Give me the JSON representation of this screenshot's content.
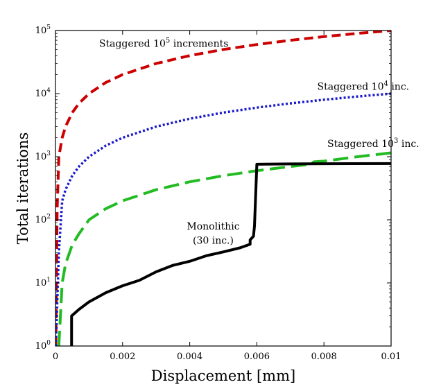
{
  "chart_data": {
    "type": "line",
    "xlabel": "Displacement [mm]",
    "ylabel": "Total iterations",
    "xlim": [
      0,
      0.01
    ],
    "ylim": [
      1,
      100000
    ],
    "yscale": "log",
    "grid": false,
    "x_ticks": [
      "0",
      "0.002",
      "0.004",
      "0.006",
      "0.008",
      "0.01"
    ],
    "x_tick_values": [
      0,
      0.002,
      0.004,
      0.006,
      0.008,
      0.01
    ],
    "y_ticks": [
      {
        "base": "10",
        "exp": "0",
        "value": 1
      },
      {
        "base": "10",
        "exp": "1",
        "value": 10
      },
      {
        "base": "10",
        "exp": "2",
        "value": 100
      },
      {
        "base": "10",
        "exp": "3",
        "value": 1000
      },
      {
        "base": "10",
        "exp": "4",
        "value": 10000
      },
      {
        "base": "10",
        "exp": "5",
        "value": 100000
      }
    ],
    "series": [
      {
        "color": "#cc0000",
        "dash": "long-dash",
        "points": [
          [
            1e-05,
            1
          ],
          [
            5e-05,
            150
          ],
          [
            0.0001,
            1000
          ],
          [
            0.0002,
            2000
          ],
          [
            0.0003,
            3000
          ],
          [
            0.0005,
            5000
          ],
          [
            0.0007,
            7000
          ],
          [
            0.001,
            10000
          ],
          [
            0.0015,
            15000
          ],
          [
            0.002,
            20000
          ],
          [
            0.003,
            30000
          ],
          [
            0.004,
            40000
          ],
          [
            0.005,
            50000
          ],
          [
            0.006,
            60000
          ],
          [
            0.007,
            70000
          ],
          [
            0.008,
            80000
          ],
          [
            0.009,
            90000
          ],
          [
            0.01,
            100000
          ]
        ]
      },
      {
        "color": "#1a1acc",
        "dash": "dotted",
        "points": [
          [
            1e-05,
            1
          ],
          [
            0.0001,
            30
          ],
          [
            0.0002,
            200
          ],
          [
            0.0003,
            300
          ],
          [
            0.0005,
            500
          ],
          [
            0.0007,
            700
          ],
          [
            0.001,
            1000
          ],
          [
            0.0015,
            1500
          ],
          [
            0.002,
            2000
          ],
          [
            0.003,
            3000
          ],
          [
            0.004,
            4000
          ],
          [
            0.005,
            5000
          ],
          [
            0.006,
            6000
          ],
          [
            0.007,
            7000
          ],
          [
            0.008,
            8000
          ],
          [
            0.009,
            9000
          ],
          [
            0.01,
            10000
          ]
        ]
      },
      {
        "color": "#22bb22",
        "dash": "dashed",
        "points": [
          [
            0.0001,
            1
          ],
          [
            0.0002,
            10
          ],
          [
            0.0003,
            20
          ],
          [
            0.0005,
            40
          ],
          [
            0.0007,
            60
          ],
          [
            0.001,
            100
          ],
          [
            0.0015,
            150
          ],
          [
            0.002,
            200
          ],
          [
            0.003,
            300
          ],
          [
            0.004,
            400
          ],
          [
            0.005,
            500
          ],
          [
            0.006,
            600
          ],
          [
            0.007,
            700
          ],
          [
            0.0076,
            760
          ],
          [
            0.0077,
            830
          ],
          [
            0.008,
            850
          ],
          [
            0.009,
            1000
          ],
          [
            0.01,
            1150
          ]
        ]
      },
      {
        "color": "#000000",
        "dash": "solid",
        "points": [
          [
            0.00048,
            1
          ],
          [
            0.00048,
            3
          ],
          [
            0.0007,
            3.8
          ],
          [
            0.001,
            5
          ],
          [
            0.0015,
            7
          ],
          [
            0.002,
            9
          ],
          [
            0.0025,
            11
          ],
          [
            0.003,
            15
          ],
          [
            0.0035,
            19
          ],
          [
            0.004,
            22
          ],
          [
            0.0045,
            27
          ],
          [
            0.005,
            31
          ],
          [
            0.0055,
            36
          ],
          [
            0.0058,
            41
          ],
          [
            0.0058,
            48
          ],
          [
            0.0059,
            55
          ],
          [
            0.00593,
            80
          ],
          [
            0.006,
            760
          ],
          [
            0.007,
            770
          ],
          [
            0.008,
            775
          ],
          [
            0.01,
            780
          ]
        ]
      }
    ],
    "annotations": [
      {
        "parts": [
          "Staggered 10",
          "5",
          " increments"
        ],
        "x": 0.0013,
        "y": 55000
      },
      {
        "parts": [
          "Staggered 10",
          "4",
          " inc."
        ],
        "x": 0.0078,
        "y": 11500
      },
      {
        "parts": [
          "Staggered 10",
          "3",
          " inc."
        ],
        "x": 0.0081,
        "y": 1430
      },
      {
        "parts": [
          "Monolithic"
        ],
        "x": 0.0047,
        "y": 70
      },
      {
        "parts": [
          "(30 inc.)"
        ],
        "x": 0.0047,
        "y": 42
      }
    ]
  }
}
